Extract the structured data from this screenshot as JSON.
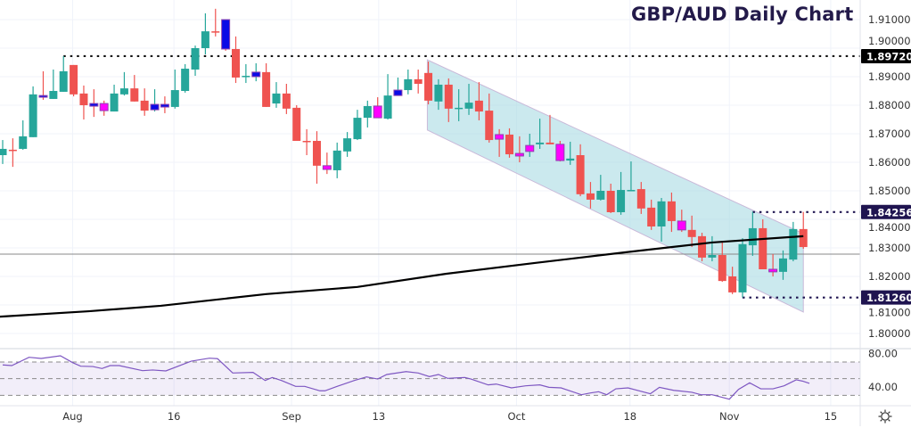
{
  "chart_data": {
    "type": "candlestick",
    "title": "GBP/AUD Daily Chart",
    "price_axis": {
      "min": 1.8,
      "max": 1.91,
      "step": 0.01,
      "tick_labels": [
        "1.80000",
        "1.81000",
        "1.82000",
        "1.83000",
        "1.84000",
        "1.85000",
        "1.86000",
        "1.87000",
        "1.88000",
        "1.89000",
        "1.90000",
        "1.91000"
      ]
    },
    "x_ticks": [
      {
        "label": "Aug",
        "i": 6.9
      },
      {
        "label": "16",
        "i": 16.9
      },
      {
        "label": "Sep",
        "i": 28.5
      },
      {
        "label": "13",
        "i": 37.1
      },
      {
        "label": "Oct",
        "i": 50.7
      },
      {
        "label": "18",
        "i": 61.9
      },
      {
        "label": "Nov",
        "i": 71.7
      },
      {
        "label": "15",
        "i": 81.7
      }
    ],
    "candles": [
      [
        1.8625,
        1.8678,
        1.8594,
        1.8647,
        ""
      ],
      [
        1.8644,
        1.8684,
        1.8584,
        1.8641,
        ""
      ],
      [
        1.8647,
        1.8747,
        1.8644,
        1.8691,
        ""
      ],
      [
        1.8688,
        1.8866,
        1.8688,
        1.8838,
        ""
      ],
      [
        1.8834,
        1.8919,
        1.8819,
        1.8828,
        "b"
      ],
      [
        1.8822,
        1.8925,
        1.8822,
        1.885,
        ""
      ],
      [
        1.8847,
        1.8972,
        1.8847,
        1.8919,
        ""
      ],
      [
        1.8941,
        1.8941,
        1.8831,
        1.8838,
        ""
      ],
      [
        1.8841,
        1.8869,
        1.875,
        1.88,
        ""
      ],
      [
        1.8806,
        1.8856,
        1.8759,
        1.8803,
        "p"
      ],
      [
        1.8806,
        1.8816,
        1.8763,
        1.8781,
        "m"
      ],
      [
        1.8778,
        1.8872,
        1.8778,
        1.8841,
        ""
      ],
      [
        1.8838,
        1.8916,
        1.8834,
        1.8859,
        ""
      ],
      [
        1.8859,
        1.8906,
        1.8813,
        1.8813,
        ""
      ],
      [
        1.8816,
        1.8859,
        1.8763,
        1.8781,
        ""
      ],
      [
        1.8784,
        1.8856,
        1.8778,
        1.8803,
        "b"
      ],
      [
        1.8803,
        1.8831,
        1.8772,
        1.8797,
        "p"
      ],
      [
        1.8794,
        1.8925,
        1.8788,
        1.8853,
        ""
      ],
      [
        1.885,
        1.8944,
        1.8844,
        1.8928,
        ""
      ],
      [
        1.8925,
        1.9009,
        1.8903,
        1.9,
        ""
      ],
      [
        1.9,
        1.9122,
        1.8978,
        1.9059,
        ""
      ],
      [
        1.9059,
        1.9138,
        1.9041,
        1.9056,
        ""
      ],
      [
        1.91,
        1.91,
        1.8991,
        1.8997,
        "b"
      ],
      [
        1.8997,
        1.9041,
        1.8878,
        1.8897,
        ""
      ],
      [
        1.89,
        1.8944,
        1.8878,
        1.8903,
        ""
      ],
      [
        1.89,
        1.8947,
        1.8884,
        1.8916,
        "p"
      ],
      [
        1.8916,
        1.8947,
        1.8794,
        1.8794,
        ""
      ],
      [
        1.8806,
        1.8881,
        1.8791,
        1.8841,
        ""
      ],
      [
        1.8841,
        1.8875,
        1.8769,
        1.8788,
        ""
      ],
      [
        1.8791,
        1.88,
        1.8675,
        1.8675,
        ""
      ],
      [
        1.8675,
        1.8716,
        1.8625,
        1.8672,
        ""
      ],
      [
        1.8675,
        1.8709,
        1.8525,
        1.8588,
        ""
      ],
      [
        1.8588,
        1.8634,
        1.8559,
        1.8575,
        "m"
      ],
      [
        1.8572,
        1.8669,
        1.8544,
        1.8641,
        ""
      ],
      [
        1.8638,
        1.8706,
        1.8619,
        1.8684,
        ""
      ],
      [
        1.8681,
        1.8784,
        1.8678,
        1.8756,
        ""
      ],
      [
        1.8756,
        1.8816,
        1.8722,
        1.8797,
        ""
      ],
      [
        1.8797,
        1.8828,
        1.8756,
        1.8756,
        "m"
      ],
      [
        1.8753,
        1.8909,
        1.875,
        1.8834,
        ""
      ],
      [
        1.8834,
        1.8897,
        1.8834,
        1.8853,
        "p"
      ],
      [
        1.8853,
        1.8925,
        1.8838,
        1.8891,
        ""
      ],
      [
        1.8891,
        1.8925,
        1.8841,
        1.8875,
        ""
      ],
      [
        1.8913,
        1.8953,
        1.8803,
        1.8816,
        ""
      ],
      [
        1.8813,
        1.8891,
        1.8784,
        1.8872,
        ""
      ],
      [
        1.8872,
        1.8894,
        1.8741,
        1.8788,
        ""
      ],
      [
        1.8788,
        1.8856,
        1.8744,
        1.8791,
        ""
      ],
      [
        1.8788,
        1.8875,
        1.8766,
        1.8809,
        ""
      ],
      [
        1.8816,
        1.8881,
        1.8747,
        1.8778,
        ""
      ],
      [
        1.8781,
        1.8841,
        1.8669,
        1.8678,
        ""
      ],
      [
        1.8697,
        1.8716,
        1.8619,
        1.8681,
        "m"
      ],
      [
        1.8697,
        1.8719,
        1.8616,
        1.8628,
        ""
      ],
      [
        1.8631,
        1.8691,
        1.86,
        1.8622,
        "m"
      ],
      [
        1.8638,
        1.87,
        1.8619,
        1.8659,
        "m"
      ],
      [
        1.8663,
        1.8753,
        1.8647,
        1.8669,
        ""
      ],
      [
        1.8669,
        1.8766,
        1.8663,
        1.8663,
        ""
      ],
      [
        1.8663,
        1.8675,
        1.8603,
        1.8606,
        "m"
      ],
      [
        1.8606,
        1.8672,
        1.8591,
        1.8613,
        ""
      ],
      [
        1.8625,
        1.8663,
        1.8481,
        1.8488,
        ""
      ],
      [
        1.8491,
        1.8531,
        1.8438,
        1.8469,
        ""
      ],
      [
        1.8469,
        1.8556,
        1.8466,
        1.85,
        ""
      ],
      [
        1.85,
        1.8525,
        1.8422,
        1.8425,
        ""
      ],
      [
        1.8425,
        1.8566,
        1.8416,
        1.8503,
        ""
      ],
      [
        1.85,
        1.8603,
        1.85,
        1.8503,
        ""
      ],
      [
        1.8506,
        1.8531,
        1.8419,
        1.8438,
        ""
      ],
      [
        1.8441,
        1.8469,
        1.8363,
        1.8375,
        ""
      ],
      [
        1.8375,
        1.8475,
        1.8322,
        1.8463,
        ""
      ],
      [
        1.8463,
        1.8494,
        1.8356,
        1.8394,
        ""
      ],
      [
        1.8394,
        1.8434,
        1.8356,
        1.8363,
        "m"
      ],
      [
        1.8363,
        1.8413,
        1.8303,
        1.8338,
        ""
      ],
      [
        1.8341,
        1.8353,
        1.8253,
        1.8266,
        ""
      ],
      [
        1.8266,
        1.8341,
        1.8253,
        1.8275,
        ""
      ],
      [
        1.8275,
        1.8319,
        1.8181,
        1.8184,
        ""
      ],
      [
        1.82,
        1.8234,
        1.8138,
        1.8144,
        ""
      ],
      [
        1.8144,
        1.8334,
        1.8126,
        1.8313,
        ""
      ],
      [
        1.8309,
        1.8426,
        1.8272,
        1.8369,
        ""
      ],
      [
        1.8369,
        1.84,
        1.8225,
        1.8225,
        ""
      ],
      [
        1.8225,
        1.8278,
        1.82,
        1.8216,
        "m"
      ],
      [
        1.8216,
        1.8291,
        1.8188,
        1.8263,
        ""
      ],
      [
        1.8259,
        1.8391,
        1.8253,
        1.8366,
        ""
      ],
      [
        1.8366,
        1.8426,
        1.8297,
        1.8303,
        ""
      ]
    ],
    "moving_average": [
      [
        -0.3,
        1.8059
      ],
      [
        8.5,
        1.8078
      ],
      [
        15.6,
        1.8097
      ],
      [
        26,
        1.8138
      ],
      [
        35,
        1.8163
      ],
      [
        43.7,
        1.8209
      ],
      [
        52.5,
        1.8247
      ],
      [
        61.3,
        1.8284
      ],
      [
        70,
        1.8319
      ],
      [
        79,
        1.8341
      ]
    ],
    "price_line": 1.8278,
    "channel": {
      "upper": [
        [
          41.9,
          1.8959
        ],
        [
          79,
          1.835
        ]
      ],
      "lower": [
        [
          41.9,
          1.8713
        ],
        [
          79,
          1.8075
        ]
      ]
    },
    "levels": [
      {
        "value": 1.8972,
        "label": "1.89720",
        "from": 6,
        "style": "black"
      },
      {
        "value": 1.84256,
        "label": "1.84256",
        "from": 74,
        "style": "purple"
      },
      {
        "value": 1.8126,
        "label": "1.81260",
        "from": 73,
        "style": "purple"
      }
    ],
    "rsi": {
      "min": 20,
      "max": 85,
      "tick_labels": [
        {
          "label": "80.00",
          "value": 80
        },
        {
          "label": "40.00",
          "value": 40
        }
      ],
      "band": [
        30,
        70
      ],
      "mid": 50,
      "points": [
        [
          0,
          66.5
        ],
        [
          0.9,
          65.7
        ],
        [
          2.6,
          75.7
        ],
        [
          3.8,
          74.3
        ],
        [
          5.7,
          77.5
        ],
        [
          6.9,
          69.3
        ],
        [
          7.7,
          65
        ],
        [
          8.9,
          64.6
        ],
        [
          9.8,
          62.2
        ],
        [
          10.6,
          65.7
        ],
        [
          11.5,
          65.7
        ],
        [
          13.8,
          59.6
        ],
        [
          14.8,
          60.4
        ],
        [
          16.1,
          59.3
        ],
        [
          18.6,
          71
        ],
        [
          20.4,
          74.6
        ],
        [
          21.2,
          74
        ],
        [
          22.7,
          56.8
        ],
        [
          24.7,
          57.5
        ],
        [
          25.9,
          47.8
        ],
        [
          26.6,
          51.4
        ],
        [
          27.5,
          47.8
        ],
        [
          28.9,
          40.7
        ],
        [
          29.8,
          40.7
        ],
        [
          31.3,
          35.4
        ],
        [
          31.8,
          35.4
        ],
        [
          33,
          40.7
        ],
        [
          34.7,
          47.8
        ],
        [
          35.9,
          52.1
        ],
        [
          37,
          49.6
        ],
        [
          37.9,
          55
        ],
        [
          39.8,
          58.5
        ],
        [
          41,
          56.8
        ],
        [
          42.1,
          52.5
        ],
        [
          43,
          55
        ],
        [
          43.9,
          50.4
        ],
        [
          45.6,
          51.4
        ],
        [
          46.2,
          49.6
        ],
        [
          47.9,
          42.5
        ],
        [
          48.7,
          43.5
        ],
        [
          50.2,
          38.9
        ],
        [
          51.6,
          41.4
        ],
        [
          53,
          42.5
        ],
        [
          53.9,
          39.6
        ],
        [
          55.1,
          38.9
        ],
        [
          57.1,
          30.7
        ],
        [
          58,
          32.8
        ],
        [
          58.8,
          34.3
        ],
        [
          59.6,
          30.7
        ],
        [
          60.5,
          37.8
        ],
        [
          61.7,
          38.9
        ],
        [
          62.8,
          35.4
        ],
        [
          63.9,
          31.8
        ],
        [
          64.8,
          39.6
        ],
        [
          66.2,
          36
        ],
        [
          68,
          33.6
        ],
        [
          68.9,
          30.7
        ],
        [
          70,
          30.7
        ],
        [
          71.7,
          25.3
        ],
        [
          72.6,
          37.1
        ],
        [
          73.7,
          45
        ],
        [
          74.8,
          37.8
        ],
        [
          76,
          37.8
        ],
        [
          77.1,
          41.4
        ],
        [
          78.3,
          48.6
        ],
        [
          78.9,
          47.1
        ],
        [
          79.6,
          44.3
        ]
      ]
    },
    "colors": {
      "up": "#26a69a",
      "down": "#ef5350",
      "blue": "#0a0ae6",
      "magenta": "#ff00ff",
      "purple_border": "#8e44ad",
      "ma": "#000000",
      "channel": "#a9dbe2",
      "rsi": "#7e57c2",
      "label_purple": "#1f1450",
      "title": "#231a4a"
    }
  },
  "toolbar": {
    "settings_icon": "gear-icon"
  }
}
